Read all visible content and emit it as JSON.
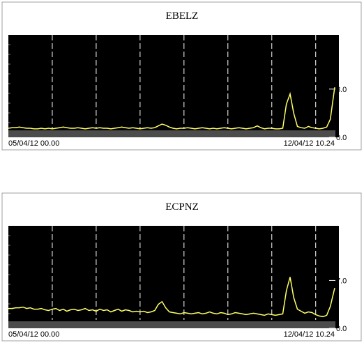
{
  "chart_data": [
    {
      "type": "line",
      "title": "EBELZ",
      "x": [
        0,
        2,
        4,
        6,
        8,
        10,
        12,
        14,
        16,
        18,
        20,
        22,
        24,
        26,
        28,
        30,
        32,
        34,
        36,
        38,
        40,
        42,
        44,
        46,
        48,
        50,
        52,
        54,
        56,
        58,
        60,
        62,
        64,
        66,
        68,
        70,
        72,
        74,
        76,
        78,
        80,
        82,
        84,
        86,
        88,
        90,
        92,
        94,
        96,
        98,
        100,
        102,
        104,
        106,
        108,
        110,
        112,
        114,
        116,
        118,
        120,
        122,
        124,
        126,
        128,
        130,
        132,
        134,
        136,
        138,
        140,
        142,
        144,
        146,
        148,
        150,
        152,
        154,
        156,
        158,
        160,
        162,
        164,
        166,
        168,
        170,
        172,
        174,
        176,
        178.4
      ],
      "series": [
        {
          "color": "#ffff66",
          "values": [
            1.5,
            1.6,
            1.6,
            1.7,
            1.6,
            1.5,
            1.5,
            1.4,
            1.4,
            1.5,
            1.4,
            1.5,
            1.4,
            1.5,
            1.6,
            1.7,
            1.6,
            1.5,
            1.5,
            1.6,
            1.5,
            1.4,
            1.5,
            1.6,
            1.5,
            1.6,
            1.5,
            1.5,
            1.4,
            1.5,
            1.6,
            1.7,
            1.6,
            1.5,
            1.6,
            1.5,
            1.4,
            1.5,
            1.6,
            1.5,
            1.6,
            1.9,
            2.2,
            2.0,
            1.7,
            1.5,
            1.4,
            1.5,
            1.5,
            1.6,
            1.5,
            1.4,
            1.5,
            1.6,
            1.5,
            1.4,
            1.5,
            1.4,
            1.5,
            1.6,
            1.5,
            1.4,
            1.5,
            1.6,
            1.5,
            1.4,
            1.5,
            1.6,
            1.9,
            1.6,
            1.4,
            1.5,
            1.5,
            1.4,
            1.4,
            1.5,
            5.5,
            7.2,
            4.0,
            1.8,
            1.6,
            1.5,
            1.8,
            1.6,
            1.5,
            1.4,
            1.5,
            1.7,
            3.0,
            8.3
          ]
        }
      ],
      "xlim": [
        0,
        178.4
      ],
      "xticks": [
        {
          "value": 0,
          "label": "05/04/12 00.00"
        },
        {
          "value": 178.4,
          "label": "12/04/12 10.24"
        }
      ],
      "grid_x": [
        24,
        48,
        72,
        96,
        120,
        144,
        168
      ],
      "ylim": [
        0,
        17
      ],
      "yticks": [
        {
          "value": 0,
          "label": "0.0"
        },
        {
          "value": 8,
          "label": "8.0"
        }
      ]
    },
    {
      "type": "line",
      "title": "ECPNZ",
      "x": [
        0,
        2,
        4,
        6,
        8,
        10,
        12,
        14,
        16,
        18,
        20,
        22,
        24,
        26,
        28,
        30,
        32,
        34,
        36,
        38,
        40,
        42,
        44,
        46,
        48,
        50,
        52,
        54,
        56,
        58,
        60,
        62,
        64,
        66,
        68,
        70,
        72,
        74,
        76,
        78,
        80,
        82,
        84,
        86,
        88,
        90,
        92,
        94,
        96,
        98,
        100,
        102,
        104,
        106,
        108,
        110,
        112,
        114,
        116,
        118,
        120,
        122,
        124,
        126,
        128,
        130,
        132,
        134,
        136,
        138,
        140,
        142,
        144,
        146,
        148,
        150,
        152,
        154,
        156,
        158,
        160,
        162,
        164,
        166,
        168,
        170,
        172,
        174,
        176,
        178.4
      ],
      "series": [
        {
          "color": "#ffff66",
          "values": [
            2.9,
            2.9,
            3.0,
            3.0,
            3.1,
            2.9,
            3.0,
            2.8,
            2.8,
            2.9,
            2.7,
            2.6,
            2.8,
            2.9,
            2.6,
            2.8,
            2.5,
            2.7,
            2.8,
            2.6,
            2.7,
            2.9,
            2.6,
            2.7,
            2.5,
            2.8,
            2.6,
            2.7,
            2.4,
            2.6,
            2.8,
            2.5,
            2.7,
            2.6,
            2.4,
            2.5,
            2.4,
            2.5,
            2.3,
            2.4,
            2.6,
            3.5,
            3.9,
            3.0,
            2.4,
            2.3,
            2.2,
            2.1,
            2.3,
            2.2,
            2.1,
            2.2,
            2.3,
            2.1,
            2.2,
            2.4,
            2.2,
            2.1,
            2.3,
            2.2,
            2.0,
            2.1,
            2.3,
            2.2,
            2.1,
            2.0,
            2.1,
            2.2,
            2.1,
            2.0,
            1.9,
            2.1,
            2.0,
            1.9,
            2.0,
            2.1,
            5.5,
            7.5,
            4.5,
            2.8,
            2.5,
            2.2,
            2.4,
            2.3,
            2.0,
            1.8,
            1.7,
            1.9,
            3.2,
            5.9
          ]
        }
      ],
      "xlim": [
        0,
        178.4
      ],
      "xticks": [
        {
          "value": 0,
          "label": "05/04/12 00.00"
        },
        {
          "value": 178.4,
          "label": "12/04/12 10.24"
        }
      ],
      "grid_x": [
        24,
        48,
        72,
        96,
        120,
        144,
        168
      ],
      "ylim": [
        0,
        15
      ],
      "yticks": [
        {
          "value": 0,
          "label": "0.0"
        },
        {
          "value": 7,
          "label": "7.0"
        }
      ]
    }
  ]
}
